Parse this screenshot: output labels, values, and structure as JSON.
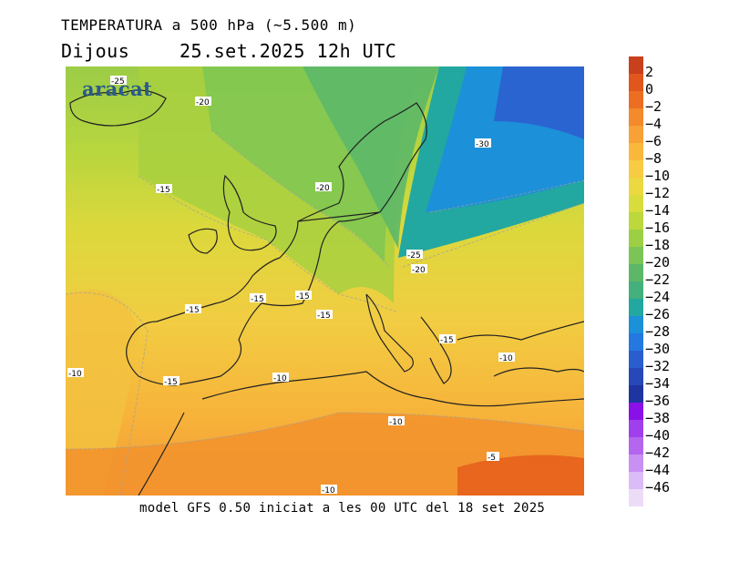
{
  "header": {
    "title": "TEMPERATURA a 500 hPa (~5.500 m)",
    "day": "Dijous",
    "datetime": "25.set.2025 12h UTC"
  },
  "logo": "aracat",
  "footer": "model GFS 0.50 iniciat a les 00 UTC del 18 set 2025",
  "map": {
    "variable": "temperature at 500 hPa (°C)",
    "contour_labels": [
      {
        "text": "-25"
      },
      {
        "text": "-20"
      },
      {
        "text": "-15"
      },
      {
        "text": "-20"
      },
      {
        "text": "-30"
      },
      {
        "text": "-25"
      },
      {
        "text": "-20"
      },
      {
        "text": "-15"
      },
      {
        "text": "-15"
      },
      {
        "text": "-15"
      },
      {
        "text": "-15"
      },
      {
        "text": "-10"
      },
      {
        "text": "-15"
      },
      {
        "text": "-10"
      },
      {
        "text": "-15"
      },
      {
        "text": "-10"
      },
      {
        "text": "-10"
      },
      {
        "text": "-5"
      },
      {
        "text": "-10"
      }
    ]
  },
  "legend": {
    "items": [
      {
        "label": "2",
        "color": "#c8401c"
      },
      {
        "label": "0",
        "color": "#e0561c"
      },
      {
        "label": "−2",
        "color": "#ec6e22"
      },
      {
        "label": "−4",
        "color": "#f38a2c"
      },
      {
        "label": "−6",
        "color": "#f7a136"
      },
      {
        "label": "−8",
        "color": "#f9b83c"
      },
      {
        "label": "−10",
        "color": "#f7cc42"
      },
      {
        "label": "−12",
        "color": "#ecd840"
      },
      {
        "label": "−14",
        "color": "#d8dc3c"
      },
      {
        "label": "−16",
        "color": "#bcd83c"
      },
      {
        "label": "−18",
        "color": "#9ccf44"
      },
      {
        "label": "−20",
        "color": "#7cc456"
      },
      {
        "label": "−22",
        "color": "#5cb868"
      },
      {
        "label": "−24",
        "color": "#44b07c"
      },
      {
        "label": "−26",
        "color": "#22a8a0"
      },
      {
        "label": "−28",
        "color": "#1c90d8"
      },
      {
        "label": "−30",
        "color": "#2478e0"
      },
      {
        "label": "−32",
        "color": "#2a5ecc"
      },
      {
        "label": "−34",
        "color": "#2648b8"
      },
      {
        "label": "−36",
        "color": "#1e34a0"
      },
      {
        "label": "−38",
        "color": "#8a10e8"
      },
      {
        "label": "−40",
        "color": "#a040ec"
      },
      {
        "label": "−42",
        "color": "#b466ee"
      },
      {
        "label": "−44",
        "color": "#c890f2"
      },
      {
        "label": "−46",
        "color": "#dcbcf6"
      },
      {
        "label": "",
        "color": "#ecdcf8"
      }
    ]
  }
}
